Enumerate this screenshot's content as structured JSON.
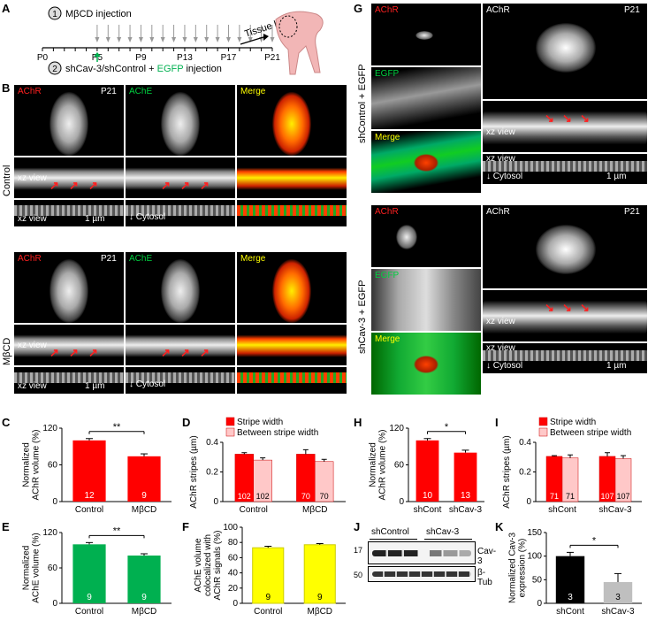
{
  "panel_letters": {
    "A": "A",
    "B": "B",
    "C": "C",
    "D": "D",
    "E": "E",
    "F": "F",
    "G": "G",
    "H": "H",
    "I": "I",
    "J": "J",
    "K": "K"
  },
  "timeline": {
    "step1": "MβCD injection",
    "step1_num": "1",
    "step2_num": "2",
    "step2_prefix": "shCav-3/shControl + ",
    "step2_egfp": "EGFP",
    "step2_suffix": " injection",
    "ticks": [
      "P0",
      "P5",
      "P9",
      "P13",
      "P17",
      "P21"
    ],
    "harvest": "Tissue harvest"
  },
  "B": {
    "groups": [
      "Control",
      "MβCD"
    ],
    "channels": [
      "AChR",
      "AChE",
      "Merge"
    ],
    "age": "P21",
    "xz": "xz view",
    "cytosol": "Cytosol",
    "scale": "1 µm"
  },
  "G": {
    "groups": [
      "shControl + EGFP",
      "shCav-3 + EGFP"
    ],
    "left_channels": [
      "AChR",
      "EGFP",
      "Merge"
    ],
    "right_label": "AChR",
    "age": "P21",
    "xz": "xz view",
    "cytosol": "Cytosol",
    "scale": "1 µm"
  },
  "J": {
    "lanes": [
      "shControl",
      "shCav-3"
    ],
    "mw": [
      "17",
      "50"
    ],
    "bands": [
      "Cav-3",
      "β-Tub"
    ]
  },
  "chart_data": [
    {
      "id": "C",
      "type": "bar",
      "ylabel": "Normalized AChR volume (%)",
      "categories": [
        "Control",
        "MβCD"
      ],
      "values": [
        100,
        74
      ],
      "errors": [
        3,
        4
      ],
      "n": [
        "12",
        "9"
      ],
      "colors": [
        "#ff0000",
        "#ff0000"
      ],
      "ylim": [
        0,
        120
      ],
      "yticks": [
        "0",
        "60",
        "120"
      ],
      "sig": "**"
    },
    {
      "id": "D",
      "type": "bar",
      "ylabel": "AChR stripes (µm)",
      "categories": [
        "Control",
        "MβCD"
      ],
      "series": [
        {
          "name": "Stripe width",
          "values": [
            0.32,
            0.32
          ],
          "errors": [
            0.01,
            0.03
          ],
          "n": [
            "102",
            "70"
          ],
          "color": "#ff0000"
        },
        {
          "name": "Between stripe width",
          "values": [
            0.28,
            0.27
          ],
          "errors": [
            0.015,
            0.015
          ],
          "n": [
            "102",
            "70"
          ],
          "color": "#ffc8c8"
        }
      ],
      "ylim": [
        0,
        0.4
      ],
      "yticks": [
        "0",
        "0.2",
        "0.4"
      ]
    },
    {
      "id": "E",
      "type": "bar",
      "ylabel": "Normalized AChE volume (%)",
      "categories": [
        "Control",
        "MβCD"
      ],
      "values": [
        100,
        81
      ],
      "errors": [
        3,
        3
      ],
      "n": [
        "9",
        "9"
      ],
      "colors": [
        "#00b050",
        "#00b050"
      ],
      "ylim": [
        0,
        120
      ],
      "yticks": [
        "0",
        "60",
        "120"
      ],
      "sig": "**"
    },
    {
      "id": "F",
      "type": "bar",
      "ylabel": "AChE volume colocalized with AChR signals (%)",
      "categories": [
        "Control",
        "MβCD"
      ],
      "values": [
        73,
        77
      ],
      "errors": [
        2,
        1.5
      ],
      "n": [
        "9",
        "9"
      ],
      "colors": [
        "#ffff00",
        "#ffff00"
      ],
      "ylim": [
        0,
        100
      ],
      "yticks": [
        "0",
        "20",
        "40",
        "60",
        "80",
        "100"
      ]
    },
    {
      "id": "H",
      "type": "bar",
      "ylabel": "Normalized AChR volume (%)",
      "categories": [
        "shCont",
        "shCav-3"
      ],
      "values": [
        100,
        80
      ],
      "errors": [
        3,
        4
      ],
      "n": [
        "10",
        "13"
      ],
      "colors": [
        "#ff0000",
        "#ff0000"
      ],
      "ylim": [
        0,
        120
      ],
      "yticks": [
        "0",
        "60",
        "120"
      ],
      "sig": "*"
    },
    {
      "id": "I",
      "type": "bar",
      "ylabel": "AChR stripes (µm)",
      "categories": [
        "shCont",
        "shCav-3"
      ],
      "series": [
        {
          "name": "Stripe width",
          "values": [
            0.305,
            0.305
          ],
          "errors": [
            0.005,
            0.025
          ],
          "n": [
            "71",
            "107"
          ],
          "color": "#ff0000"
        },
        {
          "name": "Between stripe width",
          "values": [
            0.295,
            0.29
          ],
          "errors": [
            0.02,
            0.02
          ],
          "n": [
            "71",
            "107"
          ],
          "color": "#ffc8c8"
        }
      ],
      "ylim": [
        0,
        0.4
      ],
      "yticks": [
        "0",
        "0.2",
        "0.4"
      ]
    },
    {
      "id": "K",
      "type": "bar",
      "ylabel": "Normalized Cav-3 expression (%)",
      "categories": [
        "shCont",
        "shCav-3"
      ],
      "values": [
        100,
        45
      ],
      "errors": [
        8,
        18
      ],
      "n": [
        "3",
        "3"
      ],
      "colors": [
        "#000000",
        "#bfbfbf"
      ],
      "ylim": [
        0,
        150
      ],
      "yticks": [
        "0",
        "50",
        "100",
        "150"
      ],
      "sig": "*"
    }
  ]
}
